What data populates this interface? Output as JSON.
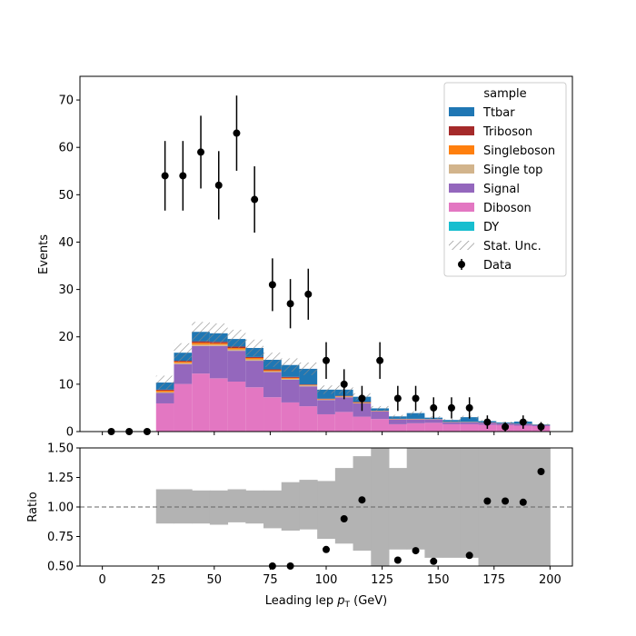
{
  "chart_data": [
    {
      "type": "stacked-histogram",
      "bin_edges": [
        0,
        8,
        16,
        24,
        32,
        40,
        48,
        56,
        64,
        72,
        80,
        88,
        96,
        104,
        112,
        120,
        128,
        136,
        144,
        152,
        160,
        168,
        176,
        184,
        192,
        200
      ],
      "stack_order": [
        "DY",
        "Diboson",
        "Signal",
        "Single top",
        "Singleboson",
        "Triboson",
        "Ttbar"
      ],
      "series": [
        {
          "name": "Ttbar",
          "color": "#1f77b4",
          "values": [
            0,
            0,
            0,
            1.5,
            1.7,
            2.0,
            1.8,
            1.6,
            1.9,
            2.0,
            2.5,
            3.3,
            1.9,
            1.3,
            1.1,
            0.5,
            0.5,
            1.2,
            0.3,
            0.4,
            1.0,
            0.3,
            0.2,
            0.5,
            0.1
          ]
        },
        {
          "name": "Triboson",
          "color": "#a52a2a",
          "values": [
            0,
            0,
            0,
            0.2,
            0.2,
            0.3,
            0.3,
            0.3,
            0.2,
            0.2,
            0.2,
            0.1,
            0.1,
            0.1,
            0.1,
            0.05,
            0.05,
            0.05,
            0.03,
            0.03,
            0.03,
            0.02,
            0.02,
            0.02,
            0.02
          ]
        },
        {
          "name": "Singleboson",
          "color": "#ff7f0e",
          "values": [
            0,
            0,
            0,
            0.3,
            0.3,
            0.4,
            0.3,
            0.3,
            0.3,
            0.2,
            0.2,
            0.1,
            0.1,
            0.1,
            0.1,
            0.05,
            0.05,
            0.05,
            0.03,
            0.03,
            0.03,
            0.02,
            0.02,
            0.02,
            0.02
          ]
        },
        {
          "name": "Single top",
          "color": "#d2b48c",
          "values": [
            0,
            0,
            0,
            0.2,
            0.2,
            0.3,
            0.3,
            0.3,
            0.3,
            0.2,
            0.2,
            0.2,
            0.1,
            0.1,
            0.1,
            0.05,
            0.05,
            0.05,
            0.03,
            0.03,
            0.03,
            0.02,
            0.02,
            0.02,
            0.02
          ]
        },
        {
          "name": "Signal",
          "color": "#9467bd",
          "values": [
            0,
            0,
            0,
            2.2,
            4.2,
            5.8,
            6.8,
            6.5,
            5.6,
            5.3,
            4.8,
            4.2,
            3.0,
            3.1,
            2.8,
            1.6,
            1.0,
            0.8,
            0.7,
            0.4,
            0.4,
            0.4,
            0.3,
            0.3,
            0.2
          ]
        },
        {
          "name": "Diboson",
          "color": "#e377c2",
          "values": [
            0,
            0,
            0,
            5.9,
            10.0,
            12.2,
            11.2,
            10.5,
            9.3,
            7.2,
            6.1,
            5.3,
            3.6,
            4.1,
            3.1,
            2.6,
            1.5,
            1.7,
            1.8,
            1.5,
            1.5,
            1.4,
            1.3,
            1.2,
            1.1
          ]
        },
        {
          "name": "DY",
          "color": "#17becf",
          "values": [
            0,
            0,
            0,
            0.05,
            0.05,
            0.05,
            0.05,
            0.05,
            0.05,
            0.05,
            0.05,
            0.05,
            0.05,
            0.05,
            0.05,
            0.05,
            0.05,
            0.05,
            0.05,
            0.05,
            0.05,
            0.05,
            0.05,
            0.05,
            0.05
          ]
        }
      ],
      "stat_unc_rel": [
        0,
        0,
        0,
        0.14,
        0.12,
        0.1,
        0.1,
        0.1,
        0.1,
        0.1,
        0.1,
        0.1,
        0.1,
        0.1,
        0.1,
        0.1,
        0.1,
        0.1,
        0.1,
        0.1,
        0.1,
        0.1,
        0.1,
        0.1,
        0.1
      ],
      "data": {
        "name": "Data",
        "x": [
          4,
          12,
          20,
          28,
          36,
          44,
          52,
          60,
          68,
          76,
          84,
          92,
          100,
          108,
          116,
          124,
          132,
          140,
          148,
          156,
          164,
          172,
          180,
          188,
          196
        ],
        "y": [
          0,
          0,
          0,
          54,
          54,
          59,
          52,
          63,
          49,
          31,
          27,
          29,
          15,
          10,
          7,
          15,
          7,
          7,
          5,
          5,
          5,
          2,
          1,
          2,
          1
        ]
      },
      "legend": {
        "title": "sample",
        "placement": "top-right",
        "entries": [
          "Ttbar",
          "Triboson",
          "Singleboson",
          "Single top",
          "Signal",
          "Diboson",
          "DY",
          "Stat. Unc.",
          "Data"
        ]
      },
      "xlabel": "",
      "ylabel": "Events",
      "xlim": [
        -10,
        210
      ],
      "ylim": [
        0,
        75
      ],
      "yticks": [
        "0",
        "10",
        "20",
        "30",
        "40",
        "50",
        "60",
        "70"
      ]
    },
    {
      "type": "ratio",
      "x": [
        4,
        12,
        20,
        28,
        36,
        44,
        52,
        60,
        68,
        76,
        84,
        92,
        100,
        108,
        116,
        124,
        132,
        140,
        148,
        156,
        164,
        172,
        180,
        188,
        196
      ],
      "y": [
        null,
        null,
        null,
        null,
        null,
        null,
        null,
        null,
        null,
        0.5,
        0.5,
        null,
        0.64,
        0.9,
        1.06,
        null,
        0.55,
        0.63,
        0.54,
        null,
        0.59,
        1.05,
        1.05,
        1.04,
        1.3
      ],
      "band_lo": [
        null,
        null,
        null,
        0.86,
        0.86,
        0.86,
        0.85,
        0.87,
        0.86,
        0.82,
        0.8,
        0.81,
        0.73,
        0.69,
        0.63,
        0.5,
        0.64,
        0.64,
        0.57,
        0.57,
        0.57,
        0.5,
        0.5,
        0.5,
        0.5
      ],
      "band_hi": [
        null,
        null,
        null,
        1.15,
        1.15,
        1.14,
        1.14,
        1.15,
        1.14,
        1.14,
        1.21,
        1.23,
        1.22,
        1.33,
        1.43,
        1.5,
        1.33,
        1.5,
        1.5,
        1.5,
        1.5,
        1.5,
        1.5,
        1.5,
        1.5
      ],
      "reference_line": 1.0,
      "xlabel": "Leading lep p_T (GeV)",
      "xlabel_main": "Leading lep ",
      "xlabel_sym": "p",
      "xlabel_sub": "T",
      "xlabel_unit": " (GeV)",
      "ylabel": "Ratio",
      "xlim": [
        -10,
        210
      ],
      "ylim": [
        0.5,
        1.5
      ],
      "xticks": [
        "0",
        "25",
        "50",
        "75",
        "100",
        "125",
        "150",
        "175",
        "200"
      ],
      "yticks": [
        "0.50",
        "0.75",
        "1.00",
        "1.25",
        "1.50"
      ]
    }
  ]
}
